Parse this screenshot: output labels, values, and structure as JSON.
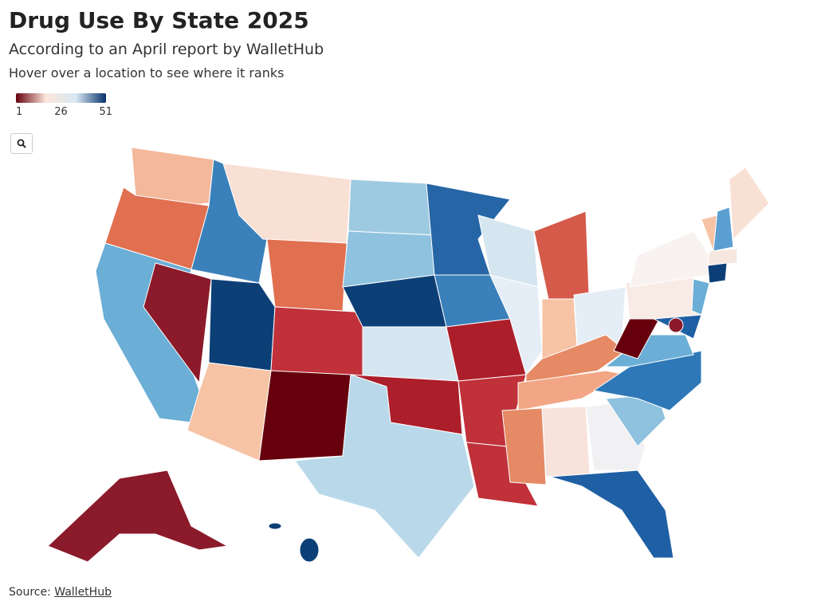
{
  "header": {
    "title": "Drug Use By State 2025",
    "subtitle": "According to an April report by WalletHub",
    "description": "Hover over a location to see where it ranks"
  },
  "legend": {
    "ticks": [
      1,
      26,
      51
    ],
    "colors": [
      "#67000d",
      "#fbe6dc",
      "#d9e9f3",
      "#08306b"
    ]
  },
  "footer": {
    "source_label": "Source:",
    "source_name": "WalletHub"
  }
}
